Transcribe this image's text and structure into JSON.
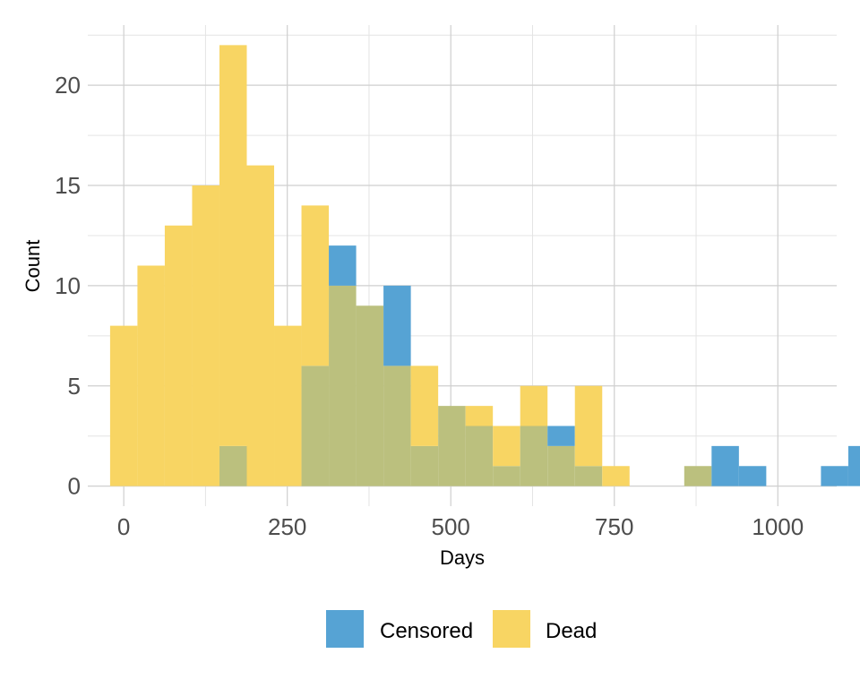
{
  "chart_data": {
    "type": "bar",
    "subtype": "overlaid-histogram",
    "xlabel": "Days",
    "ylabel": "Count",
    "xlim": [
      -55,
      1090
    ],
    "ylim": [
      -1,
      23
    ],
    "x_ticks": [
      0,
      250,
      500,
      750,
      1000
    ],
    "y_ticks": [
      0,
      5,
      10,
      15,
      20
    ],
    "grid": true,
    "legend_position": "bottom",
    "bin_width": 41.8,
    "bin_start": -20.9,
    "series": [
      {
        "name": "Censored",
        "color": "#56A3D4",
        "values": [
          0,
          0,
          0,
          0,
          2,
          0,
          0,
          6,
          12,
          9,
          10,
          2,
          4,
          3,
          1,
          3,
          3,
          1,
          0,
          0,
          0,
          1,
          2,
          1,
          0,
          0,
          1,
          2
        ]
      },
      {
        "name": "Dead",
        "color": "#F8D563",
        "values": [
          8,
          11,
          13,
          15,
          22,
          16,
          8,
          14,
          10,
          9,
          6,
          6,
          4,
          4,
          3,
          5,
          2,
          5,
          1,
          0,
          0,
          1,
          0,
          0,
          0,
          0,
          0,
          0
        ]
      }
    ],
    "overlap_color": "#BBC07E"
  }
}
